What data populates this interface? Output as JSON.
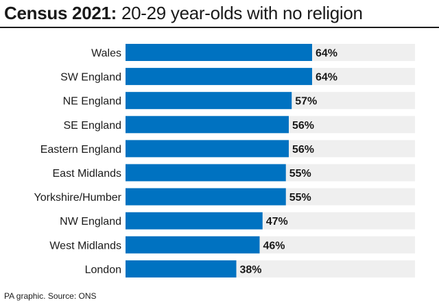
{
  "title": {
    "bold": "Census 2021:",
    "rest": " 20-29 year-olds with no religion"
  },
  "source": "PA graphic. Source: ONS",
  "colors": {
    "bar": "#0072c1",
    "track": "#efefef",
    "text": "#1a1a1a"
  },
  "chart_data": {
    "type": "bar",
    "orientation": "horizontal",
    "categories": [
      "Wales",
      "SW England",
      "NE England",
      "SE England",
      "Eastern England",
      "East Midlands",
      "Yorkshire/Humber",
      "NW England",
      "West Midlands",
      "London"
    ],
    "values": [
      64,
      64,
      57,
      56,
      56,
      55,
      55,
      47,
      46,
      38
    ],
    "value_labels": [
      "64%",
      "64%",
      "57%",
      "56%",
      "56%",
      "55%",
      "55%",
      "47%",
      "46%",
      "38%"
    ],
    "xlim": [
      0,
      100
    ],
    "grid": false,
    "legend": "none"
  }
}
